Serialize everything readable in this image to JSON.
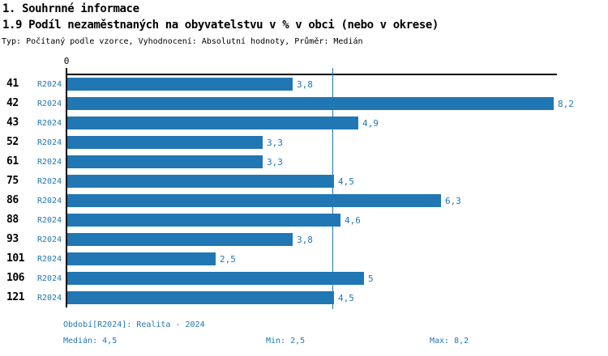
{
  "colors": {
    "accent": "#2077b4",
    "text": "#000000",
    "background": "#ffffff"
  },
  "header": {
    "title": "1. Souhrnné informace",
    "subtitle": "1.9 Podíl nezaměstnaných na obyvatelstvu v % v obci (nebo v okrese)",
    "meta": "Typ: Počítaný podle vzorce, Vyhodnocení: Absolutní hodnoty, Průměr: Medián"
  },
  "chart_data": {
    "type": "bar",
    "orientation": "horizontal",
    "categories": [
      "41",
      "42",
      "43",
      "52",
      "61",
      "75",
      "86",
      "88",
      "93",
      "101",
      "106",
      "121"
    ],
    "series": [
      {
        "name": "R2024",
        "values": [
          3.8,
          8.2,
          4.9,
          3.3,
          3.3,
          4.5,
          6.3,
          4.6,
          3.8,
          2.5,
          5,
          4.5
        ]
      }
    ],
    "value_labels": [
      "3,8",
      "8,2",
      "4,9",
      "3,3",
      "3,3",
      "4,5",
      "6,3",
      "4,6",
      "3,8",
      "2,5",
      "5",
      "4,5"
    ],
    "xlim": [
      0,
      8.2
    ],
    "x_zero_tick": "0",
    "median_value": 4.5,
    "grid": false,
    "legend_position": "none",
    "bar_color": "#2077b4"
  },
  "footer": {
    "period": "Období[R2024]: Realita - 2024",
    "median": "Medián: 4,5",
    "min": "Min: 2,5",
    "max": "Max: 8,2"
  }
}
